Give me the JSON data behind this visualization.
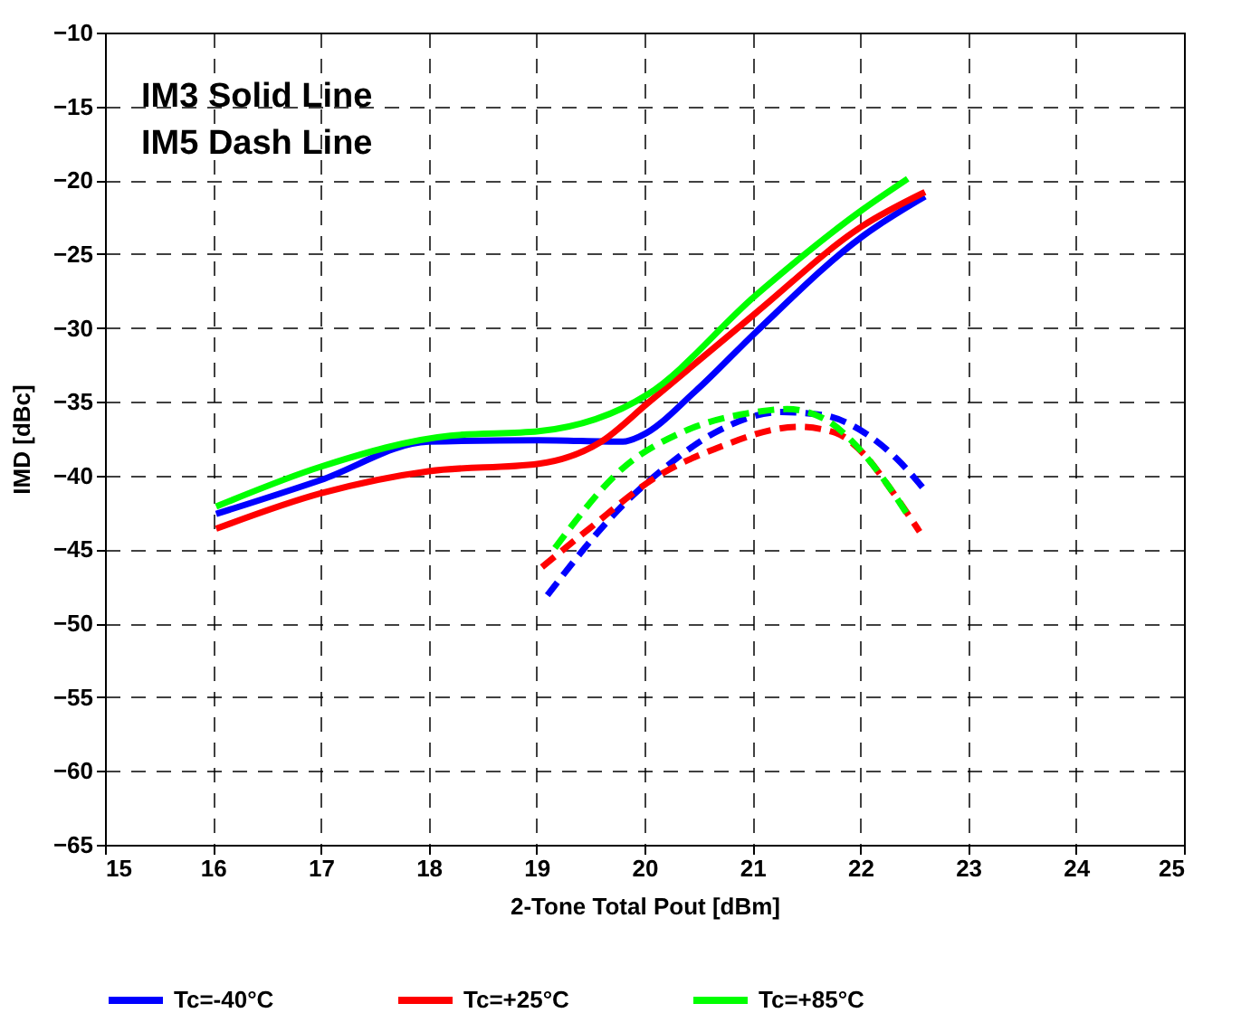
{
  "chart_data": {
    "type": "line",
    "xlabel": "2-Tone Total Pout  [dBm]",
    "ylabel": "IMD  [dBc]",
    "annotations": [
      "IM3 Solid Line",
      "IM5 Dash Line"
    ],
    "xlim": [
      15,
      25
    ],
    "xticks": [
      15,
      16,
      17,
      18,
      19,
      20,
      21,
      22,
      23,
      24,
      25
    ],
    "ylim": [
      -65,
      -10
    ],
    "yticks": [
      -65,
      -60,
      -55,
      -50,
      -45,
      -40,
      -35,
      -30,
      -25,
      -20,
      -15,
      -10
    ],
    "grid": true,
    "legend": "bottom",
    "series": [
      {
        "name": "Tc=-40°C",
        "color": "#0000ff",
        "line_style": "solid",
        "x": [
          16.03,
          17,
          18,
          19.02,
          19.8,
          19.97,
          20.47,
          21.03,
          22.02,
          22.6
        ],
        "values": [
          -42.6,
          -40.3,
          -37.7,
          -37.6,
          -37.7,
          -37.3,
          -34.3,
          -30.3,
          -23.8,
          -21.1
        ]
      },
      {
        "name": "Tc=+25°C",
        "color": "#ff0000",
        "line_style": "solid",
        "x": [
          16.03,
          17,
          18,
          19.02,
          19.6,
          20.03,
          21.03,
          22.02,
          22.6
        ],
        "values": [
          -43.6,
          -41.2,
          -39.7,
          -39.2,
          -37.7,
          -35.1,
          -29,
          -23.1,
          -20.8
        ]
      },
      {
        "name": "Tc=+85°C",
        "color": "#00ff00",
        "line_style": "solid",
        "x": [
          16.03,
          17,
          18.2,
          19.02,
          20.03,
          21.03,
          22.02,
          22.44
        ],
        "values": [
          -42.1,
          -39.4,
          -37.3,
          -37,
          -34.5,
          -27.8,
          -22,
          -19.9
        ]
      },
      {
        "color": "#0000ff",
        "line_style": "dashed",
        "x": [
          19.1,
          19.8,
          20.2,
          20.65,
          21.27,
          21.65,
          22.04,
          22.33,
          22.6
        ],
        "values": [
          -48.1,
          -42,
          -39.4,
          -37.1,
          -35.7,
          -35.9,
          -37.1,
          -38.8,
          -41
        ]
      },
      {
        "color": "#ff0000",
        "line_style": "dashed",
        "x": [
          19.05,
          19.47,
          20.13,
          20.65,
          21.43,
          21.77,
          22.04,
          22.27,
          22.55
        ],
        "values": [
          -46.2,
          -43.7,
          -40,
          -38.2,
          -36.7,
          -37.1,
          -38.6,
          -40.8,
          -43.8
        ]
      },
      {
        "color": "#00ff00",
        "line_style": "dashed",
        "x": [
          19.17,
          19.8,
          20.37,
          21.03,
          21.32,
          21.65,
          22.04,
          22.27,
          22.46
        ],
        "values": [
          -44.9,
          -39.5,
          -37,
          -35.7,
          -35.5,
          -36.1,
          -38.6,
          -40.8,
          -42.9
        ]
      }
    ]
  }
}
